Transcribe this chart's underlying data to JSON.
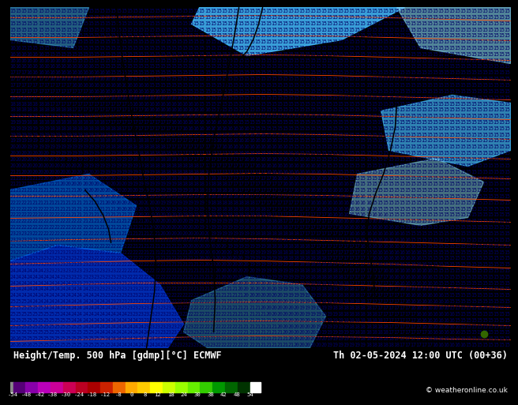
{
  "title_left": "Height/Temp. 500 hPa [gdmp][°C] ECMWF",
  "title_right": "Th 02-05-2024 12:00 UTC (00+36)",
  "copyright": "© weatheronline.co.uk",
  "bg_cyan": "#00ccff",
  "bg_dark_blue": "#0033cc",
  "bg_medium_blue": "#0066dd",
  "bg_light_blue": "#44bbff",
  "bg_very_light": "#88ddff",
  "number_color": "#000066",
  "contour_black": "#000000",
  "contour_red": "#ff4400",
  "green_dot": "#336600",
  "footer_bg": "#000000",
  "footer_text": "#ffffff",
  "cb_colors": [
    "#550077",
    "#8800aa",
    "#bb00bb",
    "#cc0099",
    "#cc0055",
    "#bb0022",
    "#aa0000",
    "#cc2200",
    "#ee6600",
    "#ffaa00",
    "#ffcc00",
    "#ffff00",
    "#ccff00",
    "#99ff00",
    "#66ee00",
    "#33cc00",
    "#009900",
    "#006600",
    "#003300"
  ],
  "cb_gray_left": "#888888",
  "cb_white_right": "#ffffff",
  "cb_tick_labels": [
    "-54",
    "-48",
    "-42",
    "-38",
    "-30",
    "-24",
    "-18",
    "-12",
    "-8",
    "0",
    "8",
    "12",
    "18",
    "24",
    "30",
    "38",
    "42",
    "48",
    "54"
  ]
}
